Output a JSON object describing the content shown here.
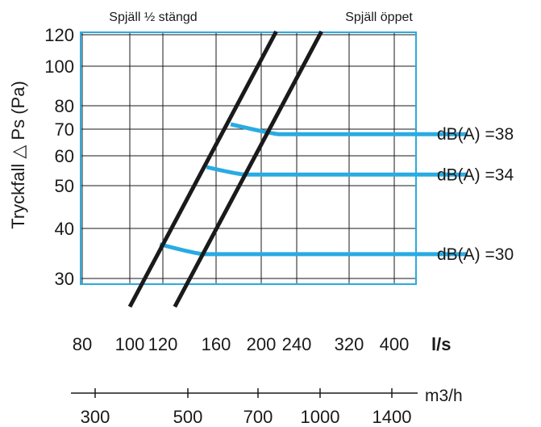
{
  "chart_data": {
    "type": "line",
    "ylabel": "Tryckfall △ Ps (Pa)",
    "y_scale": "log",
    "x_scale": "log",
    "ylim": [
      25,
      120
    ],
    "xlim": [
      80,
      520
    ],
    "yticks": [
      30,
      40,
      50,
      60,
      70,
      80,
      100,
      120
    ],
    "xticks": [
      80,
      100,
      120,
      160,
      200,
      240,
      320,
      400
    ],
    "xunit": "l/s",
    "secondary_axis": {
      "unit": "m3/h",
      "ticks": [
        300,
        500,
        700,
        1000,
        1400
      ]
    },
    "grid": true,
    "damper_curves": [
      {
        "name": "Spjäll ½ stängd",
        "x": [
          100,
          216
        ],
        "y": [
          25,
          120
        ]
      },
      {
        "name": "Spjäll öppet",
        "x": [
          128,
          275
        ],
        "y": [
          25,
          120
        ]
      }
    ],
    "sound_curves": [
      {
        "name": "dB(A) =38",
        "x": [
          172,
          220,
          520
        ],
        "y": [
          72,
          68,
          68
        ]
      },
      {
        "name": "dB(A) =34",
        "x": [
          152,
          185,
          520
        ],
        "y": [
          56,
          53.5,
          53.5
        ]
      },
      {
        "name": "dB(A) =30",
        "x": [
          118,
          150,
          520
        ],
        "y": [
          36.5,
          34.5,
          34.5
        ]
      }
    ],
    "colors": {
      "sound": "#29abe2",
      "damper": "#1a1a1a",
      "frame": "#29abe2",
      "grid": "#1a1a1a"
    }
  }
}
